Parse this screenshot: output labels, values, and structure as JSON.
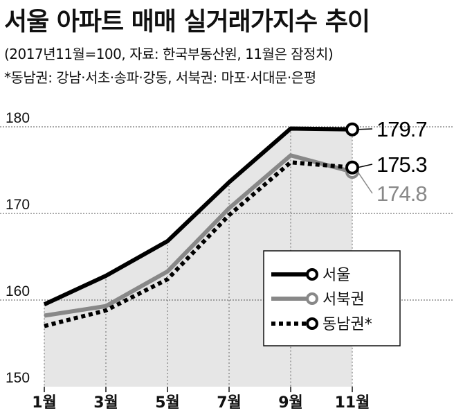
{
  "header": {
    "title": "서울 아파트 매매 실거래가지수 추이",
    "subtitle": "(2017년11월=100, 자료: 한국부동산원, 11월은 잠정치)",
    "note": "*동남권: 강남·서초·송파·강동, 서북권: 마포·서대문·은평"
  },
  "chart_data": {
    "type": "line",
    "title": "서울 아파트 매매 실거래가지수 추이",
    "categories": [
      "1월",
      "3월",
      "5월",
      "7월",
      "9월",
      "11월"
    ],
    "ylim": [
      150,
      182
    ],
    "yticks": [
      150,
      160,
      170,
      180
    ],
    "grid": true,
    "legend": "right",
    "series": [
      {
        "name": "서울",
        "values": [
          159.5,
          162.8,
          166.8,
          173.6,
          179.8,
          179.7
        ],
        "color": "#000000",
        "style": "solid",
        "end_label": "179.7"
      },
      {
        "name": "서북권",
        "values": [
          158.2,
          159.3,
          163.3,
          170.6,
          176.7,
          174.8
        ],
        "color": "#888888",
        "style": "solid",
        "end_label": "174.8"
      },
      {
        "name": "동남권*",
        "values": [
          157.0,
          158.8,
          162.4,
          169.8,
          175.9,
          175.3
        ],
        "color": "#000000",
        "style": "dotted",
        "end_label": "175.3"
      }
    ]
  }
}
